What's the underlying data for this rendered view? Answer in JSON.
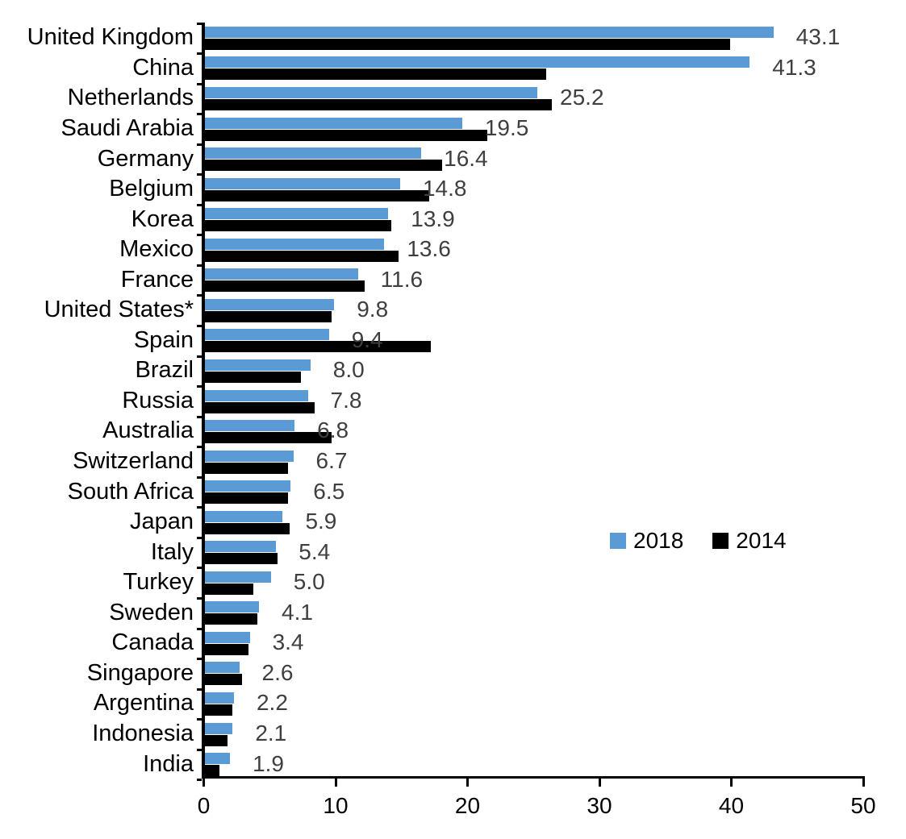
{
  "chart_data": {
    "type": "bar",
    "orientation": "horizontal",
    "title": "",
    "xlabel": "",
    "ylabel": "",
    "xlim": [
      0,
      50
    ],
    "xticks": [
      0,
      10,
      20,
      30,
      40,
      50
    ],
    "grid": false,
    "legend_position": "middle-right",
    "categories": [
      "United Kingdom",
      "China",
      "Netherlands",
      "Saudi Arabia",
      "Germany",
      "Belgium",
      "Korea",
      "Mexico",
      "France",
      "United States*",
      "Spain",
      "Brazil",
      "Russia",
      "Australia",
      "Switzerland",
      "South Africa",
      "Japan",
      "Italy",
      "Turkey",
      "Sweden",
      "Canada",
      "Singapore",
      "Argentina",
      "Indonesia",
      "India"
    ],
    "series": [
      {
        "name": "2018",
        "color": "#5B9BD5",
        "values": [
          43.1,
          41.3,
          25.2,
          19.5,
          16.4,
          14.8,
          13.9,
          13.6,
          11.6,
          9.8,
          9.4,
          8.0,
          7.8,
          6.8,
          6.7,
          6.5,
          5.9,
          5.4,
          5.0,
          4.1,
          3.4,
          2.6,
          2.2,
          2.1,
          1.9
        ],
        "data_labels": [
          "43.1",
          "41.3",
          "25.2",
          "19.5",
          "16.4",
          "14.8",
          "13.9",
          "13.6",
          "11.6",
          "9.8",
          "9.4",
          "8.0",
          "7.8",
          "6.8",
          "6.7",
          "6.5",
          "5.9",
          "5.4",
          "5.0",
          "4.1",
          "3.4",
          "2.6",
          "2.2",
          "2.1",
          "1.9"
        ]
      },
      {
        "name": "2014",
        "color": "#000000",
        "values": [
          39.8,
          25.9,
          26.3,
          21.4,
          18.0,
          17.0,
          14.1,
          14.7,
          12.1,
          9.6,
          17.1,
          7.3,
          8.3,
          9.6,
          6.3,
          6.3,
          6.4,
          5.5,
          3.7,
          4.0,
          3.3,
          2.8,
          2.1,
          1.7,
          1.1
        ]
      }
    ]
  },
  "colors": {
    "value_label": "#3f3f3f",
    "axis": "#000000",
    "background": "#ffffff"
  }
}
